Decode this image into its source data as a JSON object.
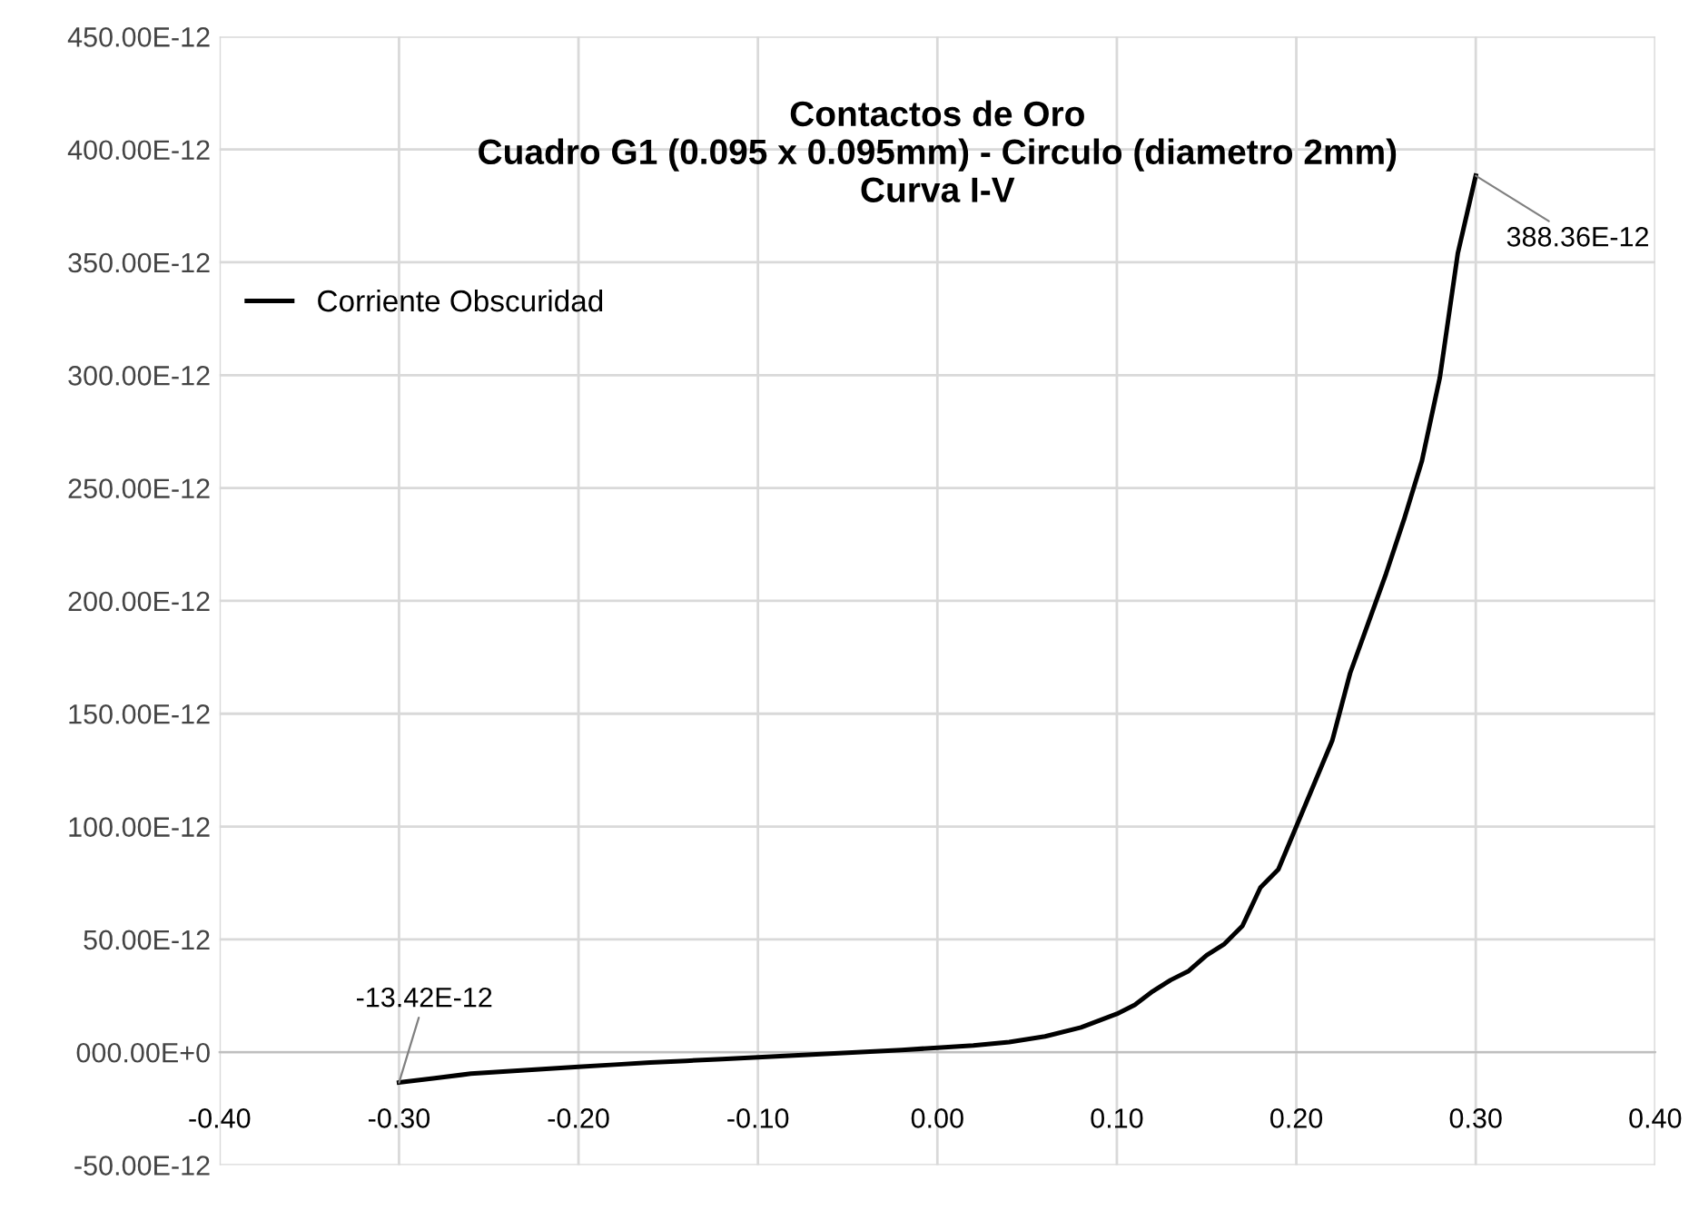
{
  "chart_data": {
    "type": "line",
    "title": "Contactos de Oro\nCuadro G1 (0.095 x 0.095mm) - Circulo (diametro 2mm)\nCurva I-V",
    "x": [
      -0.3,
      -0.28,
      -0.26,
      -0.24,
      -0.22,
      -0.2,
      -0.18,
      -0.16,
      -0.14,
      -0.12,
      -0.1,
      -0.08,
      -0.06,
      -0.04,
      -0.02,
      0.0,
      0.02,
      0.04,
      0.06,
      0.08,
      0.09,
      0.1,
      0.11,
      0.12,
      0.13,
      0.14,
      0.15,
      0.16,
      0.17,
      0.18,
      0.19,
      0.2,
      0.21,
      0.22,
      0.23,
      0.24,
      0.25,
      0.26,
      0.27,
      0.28,
      0.29,
      0.3
    ],
    "series": [
      {
        "name": "Corriente Obscuridad",
        "color": "#000000",
        "values": [
          -1.342e-11,
          -1.15e-11,
          -9.5e-12,
          -8.5e-12,
          -7.5e-12,
          -6.5e-12,
          -5.5e-12,
          -4.5e-12,
          -3.8e-12,
          -3e-12,
          -2.2e-12,
          -1.4e-12,
          -6e-13,
          2e-13,
          1e-12,
          2e-12,
          3e-12,
          4.5e-12,
          7e-12,
          1.1e-11,
          1.4e-11,
          1.7e-11,
          2.1e-11,
          2.7e-11,
          3.2e-11,
          3.6e-11,
          4.3e-11,
          4.8e-11,
          5.6e-11,
          7.3e-11,
          8.1e-11,
          1e-10,
          1.19e-10,
          1.38e-10,
          1.68e-10,
          1.9e-10,
          2.12e-10,
          2.36e-10,
          2.62e-10,
          2.99e-10,
          3.54e-10,
          3.8836e-10
        ]
      }
    ],
    "xlim": [
      -0.4,
      0.4
    ],
    "xticks": [
      {
        "value": -0.4,
        "label": "-0.40"
      },
      {
        "value": -0.3,
        "label": "-0.30"
      },
      {
        "value": -0.2,
        "label": "-0.20"
      },
      {
        "value": -0.1,
        "label": "-0.10"
      },
      {
        "value": 0,
        "label": "0.00"
      },
      {
        "value": 0.1,
        "label": "0.10"
      },
      {
        "value": 0.2,
        "label": "0.20"
      },
      {
        "value": 0.3,
        "label": "0.30"
      },
      {
        "value": 0.4,
        "label": "0.40"
      }
    ],
    "ylim": [
      -5e-11,
      4.5e-10
    ],
    "yticks": [
      {
        "value": -5e-11,
        "label": "-50.00E-12"
      },
      {
        "value": 0,
        "label": "000.00E+0"
      },
      {
        "value": 5e-11,
        "label": "50.00E-12"
      },
      {
        "value": 1e-10,
        "label": "100.00E-12"
      },
      {
        "value": 1.5e-10,
        "label": "150.00E-12"
      },
      {
        "value": 2e-10,
        "label": "200.00E-12"
      },
      {
        "value": 2.5e-10,
        "label": "250.00E-12"
      },
      {
        "value": 3e-10,
        "label": "300.00E-12"
      },
      {
        "value": 3.5e-10,
        "label": "350.00E-12"
      },
      {
        "value": 4e-10,
        "label": "400.00E-12"
      },
      {
        "value": 4.5e-10,
        "label": "450.00E-12"
      }
    ],
    "annotations": [
      {
        "text": "388.36E-12",
        "x": 0.3,
        "y": 3.8836e-10
      },
      {
        "text": "-13.42E-12",
        "x": -0.3,
        "y": -1.342e-11
      }
    ],
    "grid": true,
    "legend": "top left",
    "marker": "none",
    "line_style": "solid"
  }
}
